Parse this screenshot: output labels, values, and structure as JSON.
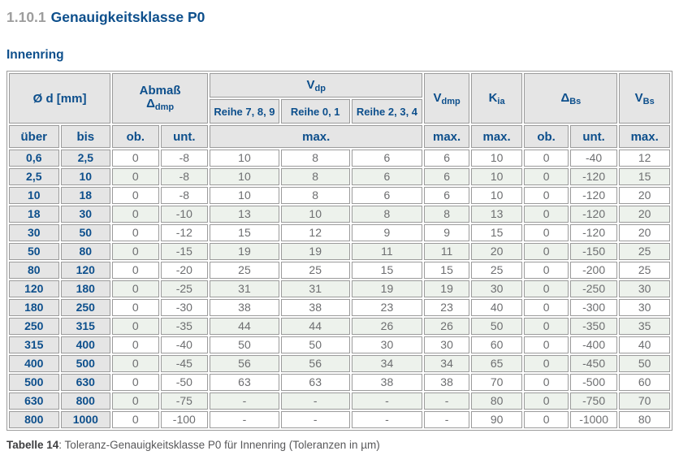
{
  "page": {
    "section_number": "1.10.1",
    "section_title": "Genauigkeitsklasse P0",
    "subtitle": "Innenring",
    "caption_label": "Tabelle 14",
    "caption_rest": ": Toleranz-Genauigkeitsklasse P0 für Innenring (Toleranzen in µm)"
  },
  "colors": {
    "accent_blue": "#0d4f8c",
    "header_gray": "#e5e5e5",
    "stripe_green": "#edf2ec",
    "value_gray": "#6d6e70",
    "border_gray": "#9b9b9b"
  },
  "table": {
    "header": {
      "d_label": "Ø d  [mm]",
      "abmass_label": "Abmaß",
      "abmass_symbol": "Δ",
      "abmass_sub": "dmp",
      "vdp_symbol": "V",
      "vdp_sub": "dp",
      "vdmp_symbol": "V",
      "vdmp_sub": "dmp",
      "kia_symbol": "K",
      "kia_sub": "ia",
      "dbs_symbol": "Δ",
      "dbs_sub": "Bs",
      "vbs_symbol": "V",
      "vbs_sub": "Bs",
      "reihe_cols": [
        "Reihe 7, 8, 9",
        "Reihe 0, 1",
        "Reihe 2, 3, 4"
      ],
      "sub_row": [
        "über",
        "bis",
        "ob.",
        "unt.",
        "max.",
        "max.",
        "max.",
        "ob.",
        "unt.",
        "max."
      ]
    },
    "rows": [
      [
        "0,6",
        "2,5",
        "0",
        "-8",
        "10",
        "8",
        "6",
        "6",
        "10",
        "0",
        "-40",
        "12"
      ],
      [
        "2,5",
        "10",
        "0",
        "-8",
        "10",
        "8",
        "6",
        "6",
        "10",
        "0",
        "-120",
        "15"
      ],
      [
        "10",
        "18",
        "0",
        "-8",
        "10",
        "8",
        "6",
        "6",
        "10",
        "0",
        "-120",
        "20"
      ],
      [
        "18",
        "30",
        "0",
        "-10",
        "13",
        "10",
        "8",
        "8",
        "13",
        "0",
        "-120",
        "20"
      ],
      [
        "30",
        "50",
        "0",
        "-12",
        "15",
        "12",
        "9",
        "9",
        "15",
        "0",
        "-120",
        "20"
      ],
      [
        "50",
        "80",
        "0",
        "-15",
        "19",
        "19",
        "11",
        "11",
        "20",
        "0",
        "-150",
        "25"
      ],
      [
        "80",
        "120",
        "0",
        "-20",
        "25",
        "25",
        "15",
        "15",
        "25",
        "0",
        "-200",
        "25"
      ],
      [
        "120",
        "180",
        "0",
        "-25",
        "31",
        "31",
        "19",
        "19",
        "30",
        "0",
        "-250",
        "30"
      ],
      [
        "180",
        "250",
        "0",
        "-30",
        "38",
        "38",
        "23",
        "23",
        "40",
        "0",
        "-300",
        "30"
      ],
      [
        "250",
        "315",
        "0",
        "-35",
        "44",
        "44",
        "26",
        "26",
        "50",
        "0",
        "-350",
        "35"
      ],
      [
        "315",
        "400",
        "0",
        "-40",
        "50",
        "50",
        "30",
        "30",
        "60",
        "0",
        "-400",
        "40"
      ],
      [
        "400",
        "500",
        "0",
        "-45",
        "56",
        "56",
        "34",
        "34",
        "65",
        "0",
        "-450",
        "50"
      ],
      [
        "500",
        "630",
        "0",
        "-50",
        "63",
        "63",
        "38",
        "38",
        "70",
        "0",
        "-500",
        "60"
      ],
      [
        "630",
        "800",
        "0",
        "-75",
        "-",
        "-",
        "-",
        "-",
        "80",
        "0",
        "-750",
        "70"
      ],
      [
        "800",
        "1000",
        "0",
        "-100",
        "-",
        "-",
        "-",
        "-",
        "90",
        "0",
        "-1000",
        "80"
      ]
    ]
  }
}
